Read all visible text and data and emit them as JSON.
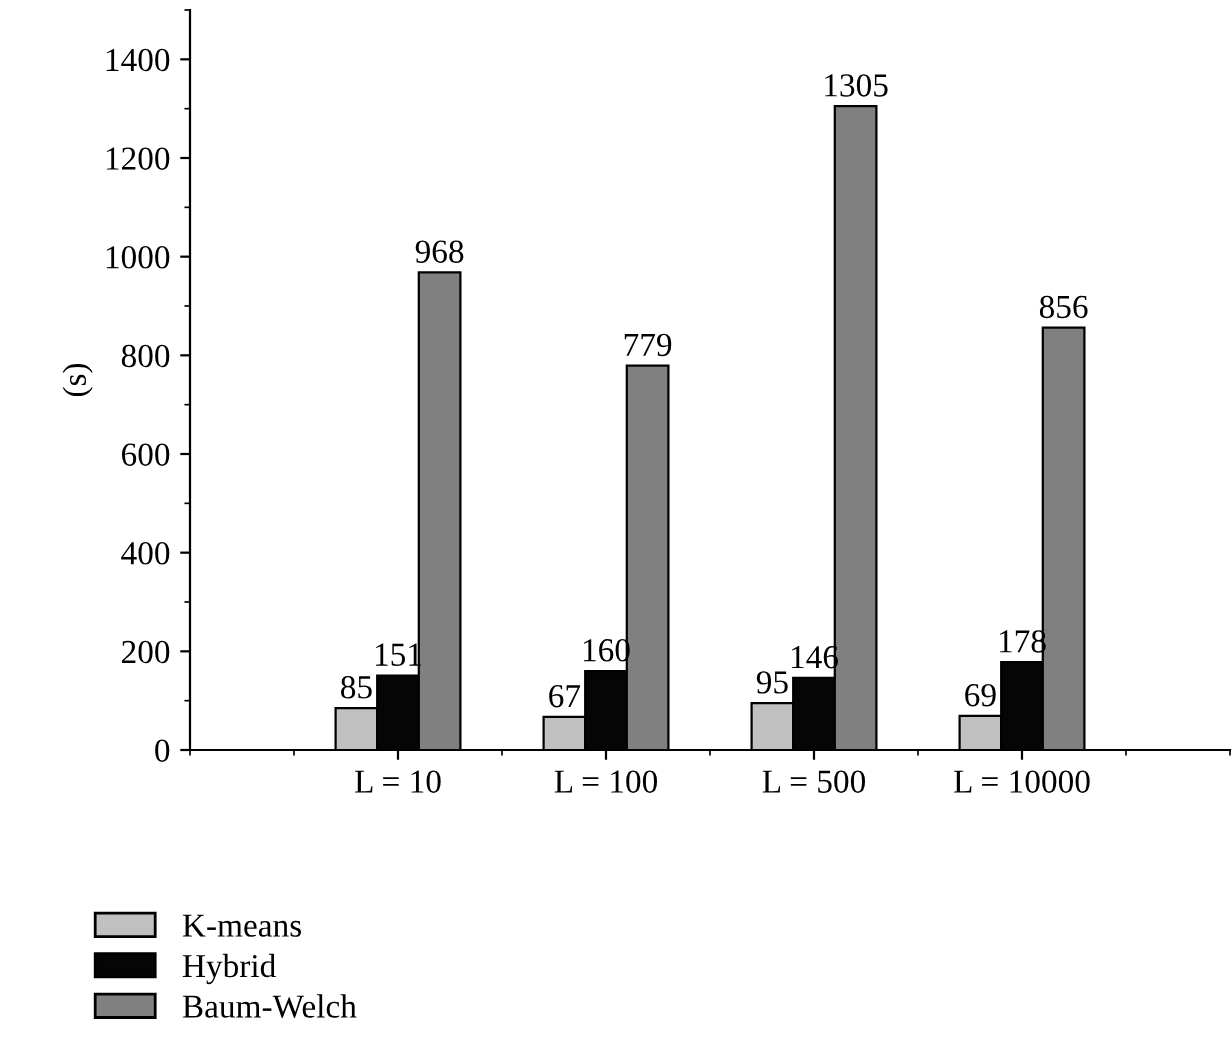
{
  "chart_data": {
    "type": "bar",
    "ylabel": "(s)",
    "categories": [
      "L = 10",
      "L = 100",
      "L = 500",
      "L = 10000"
    ],
    "series": [
      {
        "name": "K-means",
        "color": "#c0c0c0",
        "values": [
          85,
          67,
          95,
          69
        ]
      },
      {
        "name": "Hybrid",
        "color": "#050505",
        "values": [
          151,
          160,
          146,
          178
        ]
      },
      {
        "name": "Baum-Welch",
        "color": "#808080",
        "values": [
          968,
          779,
          1305,
          856
        ]
      }
    ],
    "ylim": [
      0,
      1500
    ],
    "yticks": [
      0,
      200,
      400,
      600,
      800,
      1000,
      1200,
      1400
    ],
    "data_labels": true,
    "grid": false,
    "legend": "bottom left"
  }
}
